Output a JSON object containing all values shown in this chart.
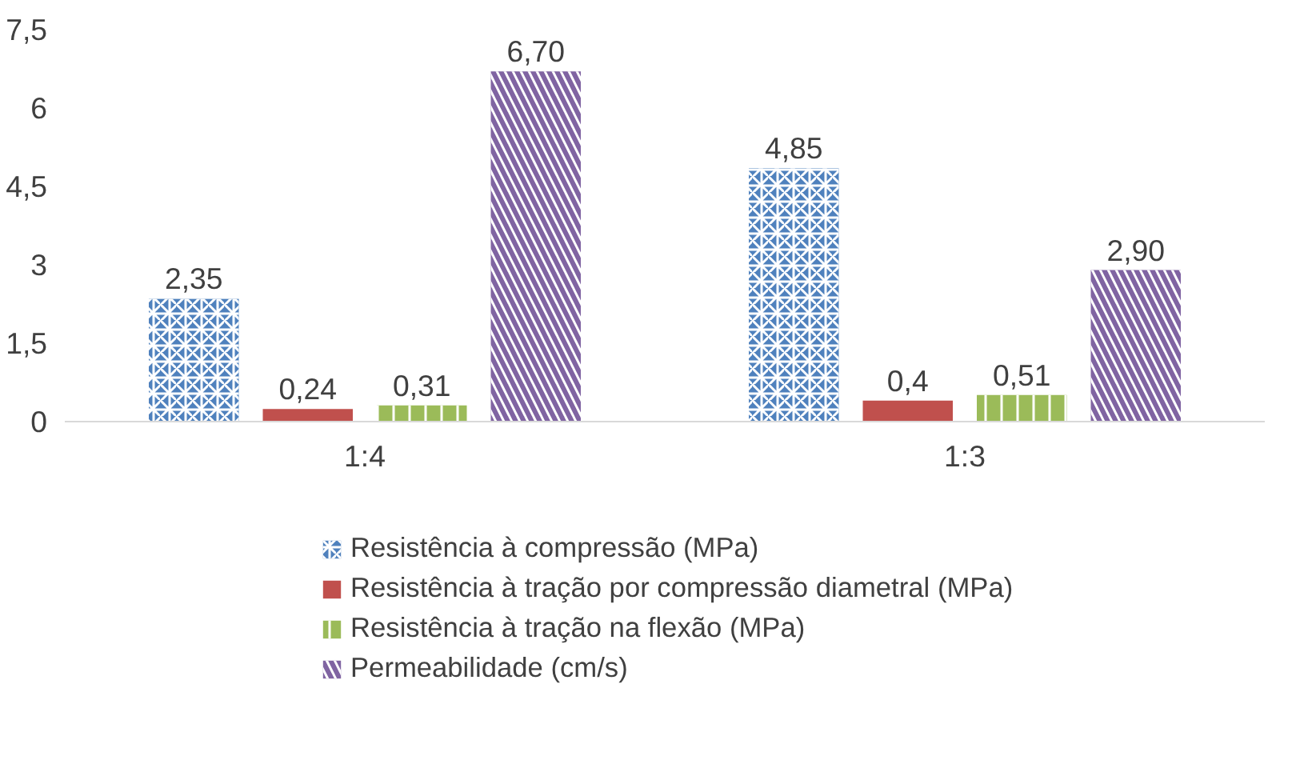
{
  "chart_data": {
    "type": "bar",
    "categories": [
      "1:4",
      "1:3"
    ],
    "series": [
      {
        "name": "Resistência à compressão (MPa)",
        "color": "#4f81bd",
        "values": [
          2.35,
          4.85
        ],
        "value_labels": [
          "2,35",
          "4,85"
        ]
      },
      {
        "name": "Resistência à tração por compressão diametral (MPa)",
        "color": "#c0504d",
        "values": [
          0.24,
          0.4
        ],
        "value_labels": [
          "0,24",
          "0,4"
        ]
      },
      {
        "name": "Resistência à tração na flexão (MPa)",
        "color": "#9bbb59",
        "values": [
          0.31,
          0.51
        ],
        "value_labels": [
          "0,31",
          "0,51"
        ]
      },
      {
        "name": "Permeabilidade (cm/s)",
        "color": "#8064a2",
        "values": [
          6.7,
          2.9
        ],
        "value_labels": [
          "6,70",
          "2,90"
        ]
      }
    ],
    "ylim": [
      0,
      7.5
    ],
    "yticks": [
      {
        "value": 0,
        "label": "0"
      },
      {
        "value": 1.5,
        "label": "1,5"
      },
      {
        "value": 3,
        "label": "3"
      },
      {
        "value": 4.5,
        "label": "4,5"
      },
      {
        "value": 6,
        "label": "6"
      },
      {
        "value": 7.5,
        "label": "7,5"
      }
    ],
    "grid": false,
    "legend": "bottom"
  }
}
